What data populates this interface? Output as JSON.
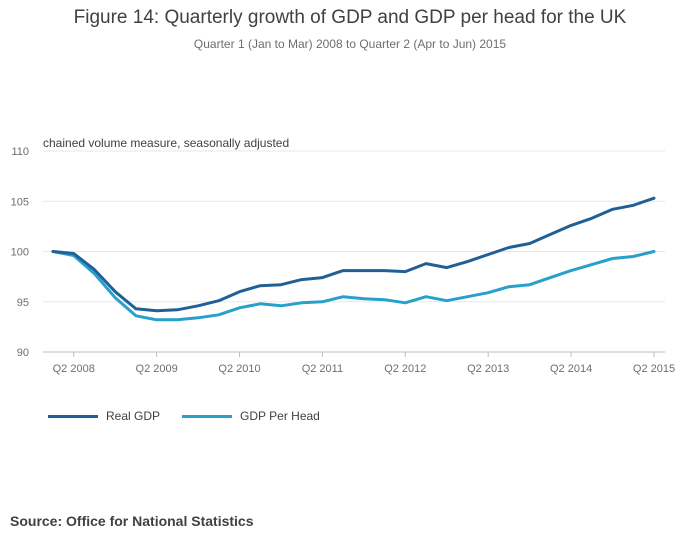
{
  "chart_data": {
    "type": "line",
    "title": "Figure 14: Quarterly growth of GDP and GDP per head for the UK",
    "subtitle": "Quarter 1 (Jan to Mar) 2008 to Quarter 2 (Apr to Jun) 2015",
    "ylabel": "chained volume measure, seasonally adjusted",
    "ylim": [
      90,
      110
    ],
    "yticks": [
      90,
      95,
      100,
      105,
      110
    ],
    "x": [
      "Q1 2008",
      "Q2 2008",
      "Q3 2008",
      "Q4 2008",
      "Q1 2009",
      "Q2 2009",
      "Q3 2009",
      "Q4 2009",
      "Q1 2010",
      "Q2 2010",
      "Q3 2010",
      "Q4 2010",
      "Q1 2011",
      "Q2 2011",
      "Q3 2011",
      "Q4 2011",
      "Q1 2012",
      "Q2 2012",
      "Q3 2012",
      "Q4 2012",
      "Q1 2013",
      "Q2 2013",
      "Q3 2013",
      "Q4 2013",
      "Q1 2014",
      "Q2 2014",
      "Q3 2014",
      "Q4 2014",
      "Q1 2015",
      "Q2 2015"
    ],
    "xticks": [
      "Q2 2008",
      "Q2 2009",
      "Q2 2010",
      "Q2 2011",
      "Q2 2012",
      "Q2 2013",
      "Q2 2014",
      "Q2 2015"
    ],
    "series": [
      {
        "name": "Real GDP",
        "color": "#206095",
        "values": [
          100.0,
          99.8,
          98.2,
          96.0,
          94.3,
          94.1,
          94.2,
          94.6,
          95.1,
          96.0,
          96.6,
          96.7,
          97.2,
          97.4,
          98.1,
          98.1,
          98.1,
          98.0,
          98.8,
          98.4,
          99.0,
          99.7,
          100.4,
          100.8,
          101.7,
          102.6,
          103.3,
          104.2,
          104.6,
          105.3
        ]
      },
      {
        "name": "GDP Per Head",
        "color": "#27a0cc",
        "values": [
          100.0,
          99.6,
          97.8,
          95.4,
          93.6,
          93.2,
          93.2,
          93.4,
          93.7,
          94.4,
          94.8,
          94.6,
          94.9,
          95.0,
          95.5,
          95.3,
          95.2,
          94.9,
          95.5,
          95.1,
          95.5,
          95.9,
          96.5,
          96.7,
          97.4,
          98.1,
          98.7,
          99.3,
          99.5,
          100.0
        ]
      }
    ]
  },
  "source": "Source: Office for National Statistics"
}
